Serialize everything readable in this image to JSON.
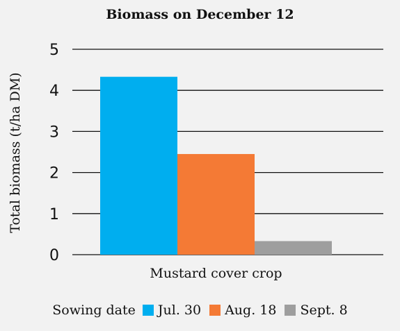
{
  "chart_data": {
    "type": "bar",
    "title": "Biomass on December 12",
    "xlabel": "",
    "ylabel": "Total biomass (t/ha DM)",
    "categories": [
      "Mustard cover crop"
    ],
    "ylim": [
      0,
      5
    ],
    "yticks": [
      "0",
      "1",
      "2",
      "3",
      "4",
      "5"
    ],
    "grid": true,
    "legend_title": "Sowing date",
    "legend_position": "bottom",
    "series": [
      {
        "name": "Jul. 30",
        "values": [
          4.33
        ],
        "color": "#00AEEF"
      },
      {
        "name": "Aug. 18",
        "values": [
          2.45
        ],
        "color": "#F47A35"
      },
      {
        "name": "Sept. 8",
        "values": [
          0.33
        ],
        "color": "#9E9E9E"
      }
    ]
  }
}
